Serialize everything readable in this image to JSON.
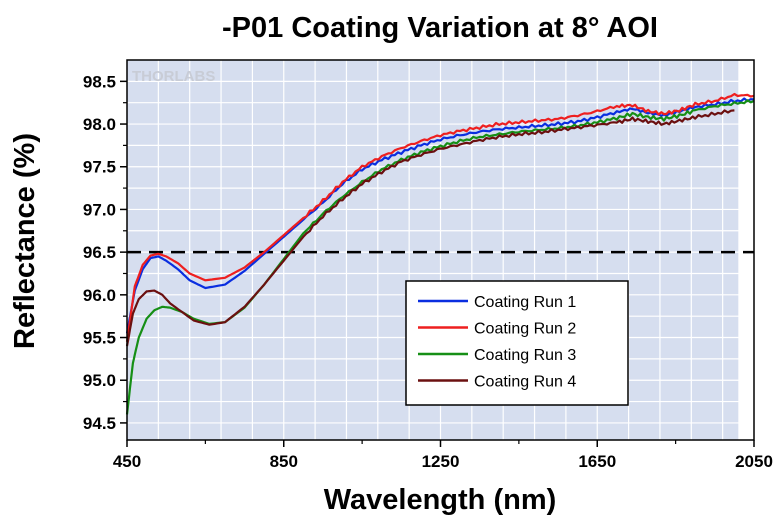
{
  "chart_data": {
    "type": "line",
    "title": "-P01 Coating Variation at 8° AOI",
    "xlabel": "Wavelength (nm)",
    "ylabel": "Reflectance (%)",
    "xlim": [
      450,
      2050
    ],
    "ylim": [
      94.3,
      98.75
    ],
    "x_ticks": [
      450,
      850,
      1250,
      1650,
      2050
    ],
    "y_ticks": [
      94.5,
      95.0,
      95.5,
      96.0,
      96.5,
      97.0,
      97.5,
      98.0,
      98.5
    ],
    "x_tick_labels": [
      "450",
      "850",
      "1250",
      "1650",
      "2050"
    ],
    "y_tick_labels": [
      "94.5",
      "95.0",
      "95.5",
      "96.0",
      "96.5",
      "97.0",
      "97.5",
      "98.0",
      "98.5"
    ],
    "shaded_region_xlim": [
      450,
      2010
    ],
    "shaded_color": "#d6deef",
    "grid": true,
    "legend_position": "lower-right",
    "watermark": "THORLABS",
    "reference_line": {
      "y": 96.5,
      "style": "dashed"
    },
    "series": [
      {
        "name": "Coating Run 1",
        "color": "#0a2ee0",
        "x": [
          450,
          470,
          490,
          510,
          530,
          550,
          580,
          610,
          650,
          700,
          750,
          800,
          850,
          900,
          950,
          1000,
          1050,
          1100,
          1150,
          1200,
          1250,
          1300,
          1350,
          1400,
          1450,
          1500,
          1550,
          1600,
          1650,
          1700,
          1740,
          1780,
          1820,
          1860,
          1900,
          1950,
          2000,
          2050
        ],
        "y": [
          95.55,
          96.05,
          96.3,
          96.43,
          96.45,
          96.4,
          96.3,
          96.17,
          96.08,
          96.12,
          96.28,
          96.48,
          96.68,
          96.88,
          97.08,
          97.3,
          97.47,
          97.58,
          97.67,
          97.75,
          97.82,
          97.87,
          97.91,
          97.94,
          97.96,
          97.98,
          98.0,
          98.03,
          98.08,
          98.14,
          98.18,
          98.13,
          98.1,
          98.15,
          98.2,
          98.23,
          98.27,
          98.29
        ]
      },
      {
        "name": "Coating Run 2",
        "color": "#ee1f1f",
        "x": [
          450,
          470,
          490,
          510,
          530,
          550,
          580,
          610,
          650,
          700,
          750,
          800,
          850,
          900,
          950,
          1000,
          1050,
          1100,
          1150,
          1200,
          1250,
          1300,
          1350,
          1400,
          1450,
          1500,
          1550,
          1600,
          1650,
          1700,
          1740,
          1780,
          1820,
          1860,
          1900,
          1950,
          2000,
          2050
        ],
        "y": [
          95.45,
          96.1,
          96.35,
          96.46,
          96.48,
          96.45,
          96.37,
          96.25,
          96.17,
          96.2,
          96.32,
          96.5,
          96.7,
          96.9,
          97.1,
          97.32,
          97.5,
          97.62,
          97.72,
          97.8,
          97.87,
          97.92,
          97.96,
          98.0,
          98.02,
          98.04,
          98.06,
          98.1,
          98.15,
          98.21,
          98.22,
          98.15,
          98.12,
          98.16,
          98.23,
          98.27,
          98.34,
          98.33
        ]
      },
      {
        "name": "Coating Run 3",
        "color": "#168f16",
        "x": [
          450,
          465,
          480,
          500,
          520,
          540,
          560,
          590,
          620,
          660,
          700,
          750,
          800,
          850,
          900,
          950,
          1000,
          1050,
          1100,
          1150,
          1200,
          1250,
          1300,
          1350,
          1400,
          1450,
          1500,
          1550,
          1600,
          1650,
          1700,
          1740,
          1780,
          1820,
          1860,
          1900,
          1950,
          2000,
          2050
        ],
        "y": [
          94.6,
          95.2,
          95.5,
          95.72,
          95.82,
          95.86,
          95.85,
          95.8,
          95.72,
          95.66,
          95.68,
          95.85,
          96.12,
          96.42,
          96.72,
          96.95,
          97.15,
          97.32,
          97.47,
          97.58,
          97.67,
          97.74,
          97.8,
          97.85,
          97.88,
          97.91,
          97.93,
          97.95,
          97.98,
          98.02,
          98.07,
          98.12,
          98.08,
          98.06,
          98.1,
          98.16,
          98.21,
          98.24,
          98.27
        ]
      },
      {
        "name": "Coating Run 4",
        "color": "#6b1010",
        "x": [
          450,
          465,
          480,
          500,
          520,
          540,
          560,
          590,
          620,
          660,
          700,
          750,
          800,
          850,
          900,
          950,
          1000,
          1050,
          1100,
          1150,
          1200,
          1250,
          1300,
          1350,
          1400,
          1450,
          1500,
          1550,
          1600,
          1650,
          1700,
          1740,
          1780,
          1820,
          1860,
          1900,
          1950,
          2000
        ],
        "y": [
          95.4,
          95.78,
          95.95,
          96.04,
          96.05,
          96.0,
          95.9,
          95.8,
          95.7,
          95.65,
          95.68,
          95.86,
          96.12,
          96.4,
          96.68,
          96.92,
          97.12,
          97.3,
          97.44,
          97.56,
          97.64,
          97.71,
          97.76,
          97.81,
          97.85,
          97.88,
          97.9,
          97.93,
          97.96,
          97.99,
          98.02,
          98.06,
          98.03,
          98.0,
          98.04,
          98.08,
          98.12,
          98.16
        ]
      }
    ]
  }
}
